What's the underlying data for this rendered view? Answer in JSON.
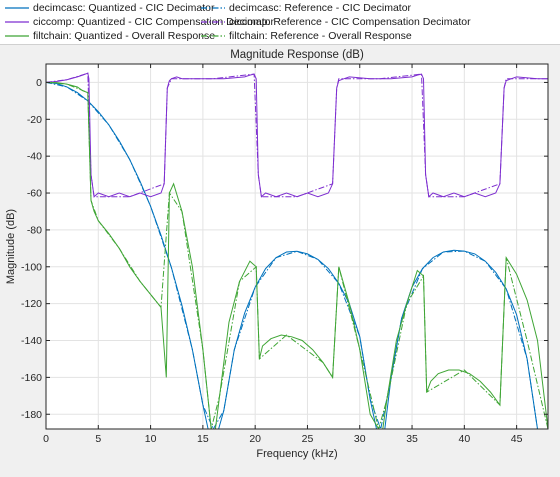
{
  "chart_data": {
    "type": "line",
    "title": "Magnitude Response (dB)",
    "xlabel": "Frequency (kHz)",
    "ylabel": "Magnitude (dB)",
    "xlim": [
      0,
      48
    ],
    "ylim": [
      -188,
      10
    ],
    "xticks": [
      0,
      5,
      10,
      15,
      20,
      25,
      30,
      35,
      40,
      45
    ],
    "xtick_labels": [
      "0",
      "5",
      "10",
      "15",
      "20",
      "25",
      "30",
      "35",
      "40",
      "45"
    ],
    "yticks": [
      0,
      -20,
      -40,
      -60,
      -80,
      -100,
      -120,
      -140,
      -160,
      -180
    ],
    "ytick_labels": [
      "0",
      "-20",
      "-40",
      "-60",
      "-80",
      "-100",
      "-120",
      "-140",
      "-160",
      "-180"
    ],
    "grid": true,
    "legend_position": "top",
    "series": [
      {
        "name": "decimcasc: Quantized - CIC Decimator",
        "color": "#0072bd",
        "dash": "solid",
        "x": [
          0,
          1,
          2,
          3,
          4,
          5,
          6,
          7,
          8,
          9,
          10,
          11,
          12,
          13,
          14,
          15,
          15.5,
          16,
          16.5,
          17,
          18,
          19,
          20,
          21,
          22,
          23,
          24,
          25,
          26,
          27,
          28,
          29,
          30,
          31,
          31.6,
          32,
          32.4,
          33,
          34,
          35,
          36,
          37,
          38,
          39,
          40,
          41,
          42,
          43,
          44,
          45,
          46,
          47,
          48
        ],
        "y": [
          0,
          -0.6,
          -2.4,
          -5.5,
          -10,
          -15.8,
          -23,
          -31.6,
          -41.8,
          -53.7,
          -67.2,
          -82.8,
          -100.6,
          -121,
          -145,
          -175,
          -188,
          -188,
          -188,
          -178,
          -145,
          -125,
          -111,
          -101,
          -95,
          -92,
          -91.6,
          -93,
          -96,
          -101,
          -109,
          -120,
          -138,
          -172,
          -188,
          -188,
          -188,
          -160,
          -128,
          -111,
          -101,
          -95,
          -92,
          -91,
          -91.5,
          -93,
          -97,
          -103,
          -112,
          -126,
          -150,
          -188,
          -188
        ]
      },
      {
        "name": "decimcasc: Reference - CIC Decimator",
        "color": "#0072bd",
        "dash": "dashdot",
        "x": [
          0,
          2,
          4,
          6,
          8,
          10,
          12,
          14,
          15,
          16,
          17,
          18,
          20,
          22,
          24,
          26,
          28,
          30,
          31,
          32,
          33,
          34,
          36,
          38,
          40,
          42,
          44,
          46,
          47,
          48
        ],
        "y": [
          0,
          -2.4,
          -10,
          -23,
          -41.8,
          -67.2,
          -100.6,
          -145,
          -175,
          -188,
          -178,
          -145,
          -111,
          -95,
          -91.6,
          -96,
          -109,
          -138,
          -172,
          -188,
          -160,
          -128,
          -101,
          -92,
          -91.5,
          -97,
          -112,
          -150,
          -188,
          -188
        ]
      },
      {
        "name": "ciccomp: Quantized - CIC Compensation Decimator",
        "color": "#7e2fd0",
        "dash": "solid",
        "x": [
          0,
          1,
          2,
          3,
          3.5,
          4,
          4.1,
          4.3,
          4.6,
          5,
          6,
          7,
          8,
          9,
          10,
          11,
          11.3,
          11.6,
          11.8,
          12,
          12.5,
          13,
          15,
          17,
          19,
          19.5,
          19.9,
          20.1,
          20.3,
          20.6,
          21,
          22,
          23,
          24,
          25,
          26,
          27,
          27.4,
          27.8,
          28,
          28.5,
          29,
          31,
          33,
          35,
          35.5,
          35.9,
          36.1,
          36.3,
          36.6,
          37,
          38,
          39,
          40,
          41,
          42,
          43,
          43.4,
          43.8,
          44,
          44.5,
          45,
          47,
          48
        ],
        "y": [
          0,
          0.5,
          1.5,
          3,
          4,
          5,
          2,
          -50,
          -62,
          -60,
          -62,
          -60,
          -62,
          -60,
          -62,
          -60,
          -55,
          -3,
          1,
          2,
          3,
          2,
          2,
          2,
          3,
          4,
          4.5,
          2,
          -50,
          -62,
          -60,
          -62,
          -60,
          -62,
          -60,
          -62,
          -60,
          -55,
          -3,
          1,
          2,
          3,
          2,
          2,
          3,
          4,
          4.5,
          2,
          -50,
          -62,
          -60,
          -62,
          -60,
          -62,
          -60,
          -62,
          -60,
          -55,
          -3,
          1,
          2,
          3,
          2,
          2
        ]
      },
      {
        "name": "ciccomp: Reference - CIC Compensation Decimator",
        "color": "#7e2fd0",
        "dash": "dashdot",
        "x": [
          0,
          2,
          4,
          4.3,
          4.6,
          8,
          11.3,
          11.6,
          12,
          16,
          19.9,
          20.3,
          20.6,
          24,
          27.4,
          27.8,
          28,
          32,
          35.9,
          36.3,
          36.6,
          40,
          43.4,
          43.8,
          44,
          48
        ],
        "y": [
          0,
          1.5,
          5,
          -50,
          -62,
          -62,
          -55,
          -3,
          2,
          2,
          4.5,
          -50,
          -62,
          -62,
          -55,
          -3,
          2,
          2,
          4.5,
          -50,
          -62,
          -62,
          -55,
          -3,
          2,
          2
        ]
      },
      {
        "name": "filtchain: Quantized - Overall Response",
        "color": "#3fa535",
        "dash": "solid",
        "x": [
          0,
          1,
          2,
          3,
          3.5,
          4,
          4.3,
          4.6,
          5,
          6,
          7,
          8,
          9,
          10,
          11,
          11.5,
          11.8,
          12.2,
          13,
          14,
          15,
          15.8,
          16.2,
          16.6,
          17.5,
          18.5,
          19.5,
          20.1,
          20.4,
          20.7,
          21.5,
          22.5,
          23.5,
          24.5,
          25.5,
          26.5,
          27.4,
          28,
          29,
          30,
          31,
          31.8,
          32.2,
          32.6,
          33.5,
          34.5,
          35.5,
          36.1,
          36.4,
          36.8,
          37.5,
          38.5,
          39.5,
          40.5,
          41.5,
          42.5,
          43.4,
          44,
          45,
          46,
          47,
          48
        ],
        "y": [
          0,
          -0.1,
          -0.9,
          -2.5,
          -4.5,
          -5.5,
          -64,
          -70,
          -75,
          -82,
          -90,
          -100,
          -108,
          -115,
          -122,
          -160,
          -60,
          -55,
          -70,
          -100,
          -145,
          -188,
          -188,
          -170,
          -130,
          -108,
          -97,
          -100,
          -150,
          -143,
          -139,
          -137,
          -138,
          -140,
          -145,
          -152,
          -160,
          -100,
          -120,
          -145,
          -180,
          -188,
          -188,
          -172,
          -140,
          -120,
          -102,
          -105,
          -168,
          -162,
          -158,
          -156,
          -156,
          -158,
          -162,
          -168,
          -175,
          -95,
          -104,
          -118,
          -140,
          -188
        ]
      },
      {
        "name": "filtchain: Reference - Overall Response",
        "color": "#3fa535",
        "dash": "dashdot",
        "x": [
          0,
          2,
          4,
          4.3,
          5,
          7,
          9,
          11,
          11.8,
          13,
          15,
          15.8,
          16.6,
          18.5,
          20.1,
          20.4,
          23,
          26.5,
          27.4,
          28,
          30,
          31.8,
          32.6,
          34.5,
          36.1,
          36.4,
          40,
          43.4,
          44,
          46,
          48
        ],
        "y": [
          0,
          -0.9,
          -5.5,
          -64,
          -75,
          -90,
          -108,
          -122,
          -60,
          -70,
          -145,
          -188,
          -170,
          -108,
          -100,
          -150,
          -137,
          -152,
          -160,
          -100,
          -145,
          -188,
          -172,
          -120,
          -105,
          -168,
          -156,
          -175,
          -95,
          -140,
          -188
        ]
      }
    ]
  }
}
